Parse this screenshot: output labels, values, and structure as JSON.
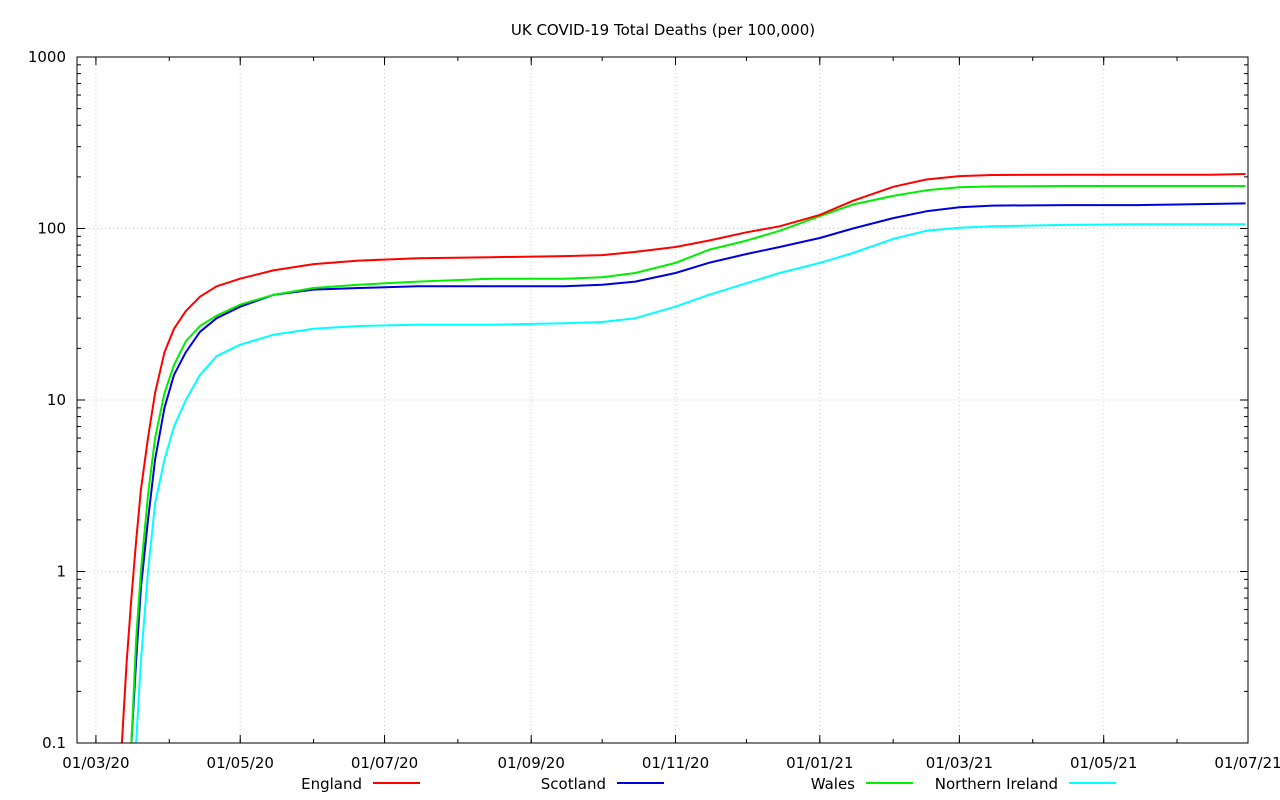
{
  "chart_data": {
    "type": "line",
    "title": "UK COVID-19 Total Deaths (per 100,000)",
    "xlabel": "",
    "ylabel": "",
    "yscale": "log",
    "ylim": [
      0.1,
      1000
    ],
    "xlim": [
      "2020-02-22",
      "2021-07-01"
    ],
    "grid": true,
    "legend_position": "bottom",
    "x_ticks": [
      {
        "date": "2020-03-01",
        "label": "01/03/20"
      },
      {
        "date": "2020-05-01",
        "label": "01/05/20"
      },
      {
        "date": "2020-07-01",
        "label": "01/07/20"
      },
      {
        "date": "2020-09-01",
        "label": "01/09/20"
      },
      {
        "date": "2020-11-01",
        "label": "01/11/20"
      },
      {
        "date": "2021-01-01",
        "label": "01/01/21"
      },
      {
        "date": "2021-03-01",
        "label": "01/03/21"
      },
      {
        "date": "2021-05-01",
        "label": "01/05/21"
      },
      {
        "date": "2021-07-01",
        "label": "01/07/21"
      }
    ],
    "y_ticks": [
      {
        "value": 0.1,
        "label": "0.1"
      },
      {
        "value": 1,
        "label": "1"
      },
      {
        "value": 10,
        "label": "10"
      },
      {
        "value": 100,
        "label": "100"
      },
      {
        "value": 1000,
        "label": "1000"
      }
    ],
    "series": [
      {
        "name": "England",
        "color": "#ff0000",
        "points": [
          [
            "2020-03-12",
            0.1
          ],
          [
            "2020-03-14",
            0.3
          ],
          [
            "2020-03-16",
            0.7
          ],
          [
            "2020-03-18",
            1.5
          ],
          [
            "2020-03-20",
            3.0
          ],
          [
            "2020-03-23",
            6.0
          ],
          [
            "2020-03-26",
            11
          ],
          [
            "2020-03-30",
            19
          ],
          [
            "2020-04-03",
            26
          ],
          [
            "2020-04-08",
            33
          ],
          [
            "2020-04-14",
            40
          ],
          [
            "2020-04-21",
            46
          ],
          [
            "2020-05-01",
            51
          ],
          [
            "2020-05-15",
            57
          ],
          [
            "2020-06-01",
            62
          ],
          [
            "2020-06-20",
            65
          ],
          [
            "2020-07-15",
            67
          ],
          [
            "2020-08-15",
            68
          ],
          [
            "2020-09-15",
            69
          ],
          [
            "2020-10-01",
            70
          ],
          [
            "2020-10-15",
            73
          ],
          [
            "2020-11-01",
            78
          ],
          [
            "2020-11-15",
            85
          ],
          [
            "2020-12-01",
            95
          ],
          [
            "2020-12-15",
            103
          ],
          [
            "2021-01-01",
            120
          ],
          [
            "2021-01-15",
            145
          ],
          [
            "2021-02-01",
            175
          ],
          [
            "2021-02-15",
            193
          ],
          [
            "2021-03-01",
            202
          ],
          [
            "2021-03-15",
            205
          ],
          [
            "2021-04-15",
            206
          ],
          [
            "2021-05-15",
            206
          ],
          [
            "2021-06-15",
            206
          ],
          [
            "2021-06-30",
            208
          ]
        ]
      },
      {
        "name": "Scotland",
        "color": "#0000dd",
        "points": [
          [
            "2020-03-16",
            0.1
          ],
          [
            "2020-03-18",
            0.3
          ],
          [
            "2020-03-20",
            0.8
          ],
          [
            "2020-03-23",
            2.0
          ],
          [
            "2020-03-26",
            4.5
          ],
          [
            "2020-03-30",
            9.0
          ],
          [
            "2020-04-03",
            14
          ],
          [
            "2020-04-08",
            19
          ],
          [
            "2020-04-14",
            25
          ],
          [
            "2020-04-21",
            30
          ],
          [
            "2020-05-01",
            35
          ],
          [
            "2020-05-15",
            41
          ],
          [
            "2020-06-01",
            44
          ],
          [
            "2020-06-20",
            45
          ],
          [
            "2020-07-15",
            46
          ],
          [
            "2020-08-15",
            46
          ],
          [
            "2020-09-15",
            46
          ],
          [
            "2020-10-01",
            47
          ],
          [
            "2020-10-15",
            49
          ],
          [
            "2020-11-01",
            55
          ],
          [
            "2020-11-15",
            63
          ],
          [
            "2020-12-01",
            71
          ],
          [
            "2020-12-15",
            78
          ],
          [
            "2021-01-01",
            88
          ],
          [
            "2021-01-15",
            100
          ],
          [
            "2021-02-01",
            115
          ],
          [
            "2021-02-15",
            126
          ],
          [
            "2021-03-01",
            133
          ],
          [
            "2021-03-15",
            136
          ],
          [
            "2021-04-15",
            137
          ],
          [
            "2021-05-15",
            137
          ],
          [
            "2021-06-01",
            138
          ],
          [
            "2021-06-30",
            140
          ]
        ]
      },
      {
        "name": "Wales",
        "color": "#00ee00",
        "points": [
          [
            "2020-03-16",
            0.1
          ],
          [
            "2020-03-18",
            0.4
          ],
          [
            "2020-03-20",
            1.0
          ],
          [
            "2020-03-23",
            2.8
          ],
          [
            "2020-03-26",
            6.0
          ],
          [
            "2020-03-30",
            11
          ],
          [
            "2020-04-03",
            16
          ],
          [
            "2020-04-08",
            22
          ],
          [
            "2020-04-14",
            27
          ],
          [
            "2020-04-21",
            31
          ],
          [
            "2020-05-01",
            36
          ],
          [
            "2020-05-15",
            41
          ],
          [
            "2020-06-01",
            45
          ],
          [
            "2020-06-20",
            47
          ],
          [
            "2020-07-15",
            49
          ],
          [
            "2020-08-15",
            51
          ],
          [
            "2020-09-15",
            51
          ],
          [
            "2020-10-01",
            52
          ],
          [
            "2020-10-15",
            55
          ],
          [
            "2020-11-01",
            63
          ],
          [
            "2020-11-15",
            75
          ],
          [
            "2020-12-01",
            85
          ],
          [
            "2020-12-15",
            97
          ],
          [
            "2021-01-01",
            118
          ],
          [
            "2021-01-15",
            138
          ],
          [
            "2021-02-01",
            155
          ],
          [
            "2021-02-15",
            167
          ],
          [
            "2021-03-01",
            174
          ],
          [
            "2021-03-15",
            176
          ],
          [
            "2021-04-15",
            177
          ],
          [
            "2021-05-15",
            177
          ],
          [
            "2021-06-30",
            177
          ]
        ]
      },
      {
        "name": "Northern Ireland",
        "color": "#00ffff",
        "points": [
          [
            "2020-03-18",
            0.1
          ],
          [
            "2020-03-20",
            0.3
          ],
          [
            "2020-03-23",
            1.0
          ],
          [
            "2020-03-26",
            2.5
          ],
          [
            "2020-03-30",
            4.5
          ],
          [
            "2020-04-03",
            7.0
          ],
          [
            "2020-04-08",
            10
          ],
          [
            "2020-04-14",
            14
          ],
          [
            "2020-04-21",
            18
          ],
          [
            "2020-05-01",
            21
          ],
          [
            "2020-05-15",
            24
          ],
          [
            "2020-06-01",
            26
          ],
          [
            "2020-06-20",
            27
          ],
          [
            "2020-07-15",
            27.5
          ],
          [
            "2020-08-15",
            27.5
          ],
          [
            "2020-09-15",
            28
          ],
          [
            "2020-10-01",
            28.5
          ],
          [
            "2020-10-15",
            30
          ],
          [
            "2020-11-01",
            35
          ],
          [
            "2020-11-15",
            41
          ],
          [
            "2020-12-01",
            48
          ],
          [
            "2020-12-15",
            55
          ],
          [
            "2021-01-01",
            63
          ],
          [
            "2021-01-15",
            72
          ],
          [
            "2021-02-01",
            87
          ],
          [
            "2021-02-15",
            97
          ],
          [
            "2021-03-01",
            101
          ],
          [
            "2021-03-15",
            103
          ],
          [
            "2021-04-15",
            105
          ],
          [
            "2021-05-15",
            106
          ],
          [
            "2021-06-30",
            106
          ]
        ]
      }
    ]
  }
}
